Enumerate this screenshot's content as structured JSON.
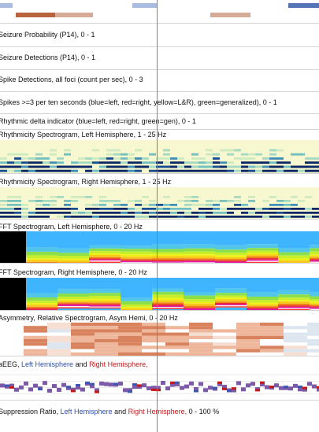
{
  "rows": {
    "seizure_probability": "Seizure Probability (P14), 0 - 1",
    "seizure_detections": "Seizure Detections (P14), 0 - 1",
    "spike_detections": "Spike Detections, all foci (count per sec), 0 - 3",
    "spikes_ten": "Spikes >=3 per ten seconds (blue=left, red=right, yellow=L&R), green=generalized),  0 - 1",
    "rhythmic_delta": "Rhythmic delta indicator (blue=left, red=right, green=gen),  0 - 1",
    "rhythmicity_left": "Rhythmicity Spectrogram, Left Hemisphere, 1 - 25 Hz",
    "rhythmicity_right": "Rhythmicity Spectrogram, Right Hemisphere, 1 - 25 Hz",
    "fft_left": "FFT Spectrogram, Left Hemisphere, 0 - 20 Hz",
    "fft_right": "FFT Spectrogram, Right Hemisphere, 0 - 20 Hz",
    "asymmetry": "Asymmetry, Relative Spectrogram, Asym Hemi, 0 - 20 Hz",
    "aeeg_prefix": "aEEG, ",
    "aeeg_left": "Left Hemisphere",
    "aeeg_and": " and ",
    "aeeg_right": "Right Hemisphere,",
    "supp_prefix": "Suppression Ratio, ",
    "supp_left": "Left Hemisphere",
    "supp_and": " and ",
    "supp_right": "Right Hemisphere,",
    "supp_range": "  0 - 100 %"
  },
  "colors": {
    "left": "#2f4fa8",
    "right": "#c01818",
    "cursor": "#6d9a3a",
    "seg_dark_red": "#b8653f",
    "seg_light_red": "#d5aa96",
    "seg_light_blue": "#aabde0",
    "seg_blue": "#5575b7"
  }
}
